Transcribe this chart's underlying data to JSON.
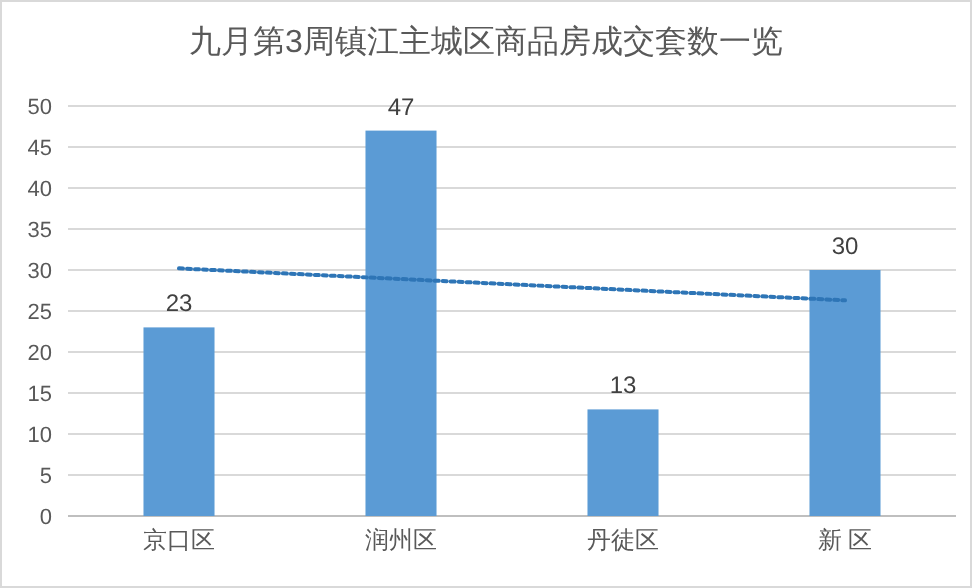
{
  "chart_data": {
    "type": "bar",
    "title": "九月第3周镇江主城区商品房成交套数一览",
    "categories": [
      "京口区",
      "润州区",
      "丹徒区",
      "新 区"
    ],
    "series": [
      {
        "color": "#5b9bd5",
        "values": [
          23,
          47,
          13,
          30
        ],
        "value_labels": [
          "23",
          "47",
          "13",
          "30"
        ]
      },
      {
        "type": "line",
        "color": "#2e75b6",
        "x": [
          "京口区",
          "新 区"
        ],
        "values": [
          30.2,
          26.3
        ],
        "line_style": "dotted"
      }
    ],
    "ylim": [
      0,
      50
    ],
    "yticks": [
      0,
      5,
      10,
      15,
      20,
      25,
      30,
      35,
      40,
      45,
      50
    ],
    "grid": "y"
  }
}
